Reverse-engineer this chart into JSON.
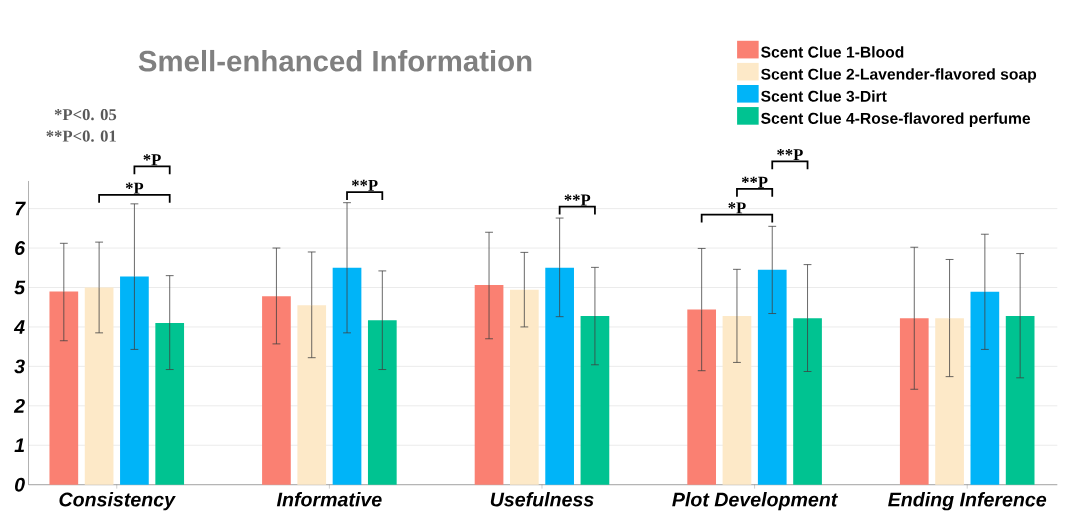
{
  "chart_data": {
    "type": "bar",
    "title": "Smell-enhanced Information",
    "categories": [
      "Consistency",
      "Informative",
      "Usefulness",
      "Plot Development",
      "Ending Inference"
    ],
    "series": [
      {
        "name": "Scent Clue 1-Blood",
        "color": "#fa8072",
        "values": [
          4.9,
          4.78,
          5.06,
          4.44,
          4.22
        ],
        "errors": [
          [
            3.65,
            6.12
          ],
          [
            3.57,
            6.0
          ],
          [
            3.7,
            6.4
          ],
          [
            2.89,
            5.99
          ],
          [
            2.42,
            6.02
          ]
        ]
      },
      {
        "name": "Scent Clue 2-Lavender-flavored soap",
        "color": "#fde9c8",
        "values": [
          5.0,
          4.55,
          4.94,
          4.28,
          4.22
        ],
        "errors": [
          [
            3.85,
            6.15
          ],
          [
            3.22,
            5.9
          ],
          [
            4.0,
            5.89
          ],
          [
            3.1,
            5.46
          ],
          [
            2.74,
            5.71
          ]
        ]
      },
      {
        "name": "Scent Clue 3-Dirt",
        "color": "#00b4f8",
        "values": [
          5.28,
          5.5,
          5.5,
          5.45,
          4.89
        ],
        "errors": [
          [
            3.43,
            7.12
          ],
          [
            3.85,
            7.15
          ],
          [
            4.26,
            6.76
          ],
          [
            4.34,
            6.55
          ],
          [
            3.43,
            6.35
          ]
        ]
      },
      {
        "name": "Scent Clue 4-Rose-flavored perfume",
        "color": "#00c391",
        "values": [
          4.1,
          4.17,
          4.28,
          4.22,
          4.28
        ],
        "errors": [
          [
            2.92,
            5.3
          ],
          [
            2.92,
            5.42
          ],
          [
            3.04,
            5.51
          ],
          [
            2.87,
            5.58
          ],
          [
            2.71,
            5.86
          ]
        ]
      }
    ],
    "ylim": [
      0,
      7.7
    ],
    "yticks": [
      0,
      1,
      2,
      3,
      4,
      5,
      6,
      7
    ],
    "grid": "y",
    "legend": "top right",
    "annotations": [
      "*P<0. 05",
      "**P<0. 01",
      "*P",
      "*P",
      "**P",
      "**P",
      "*P",
      "**P",
      "**P"
    ]
  }
}
